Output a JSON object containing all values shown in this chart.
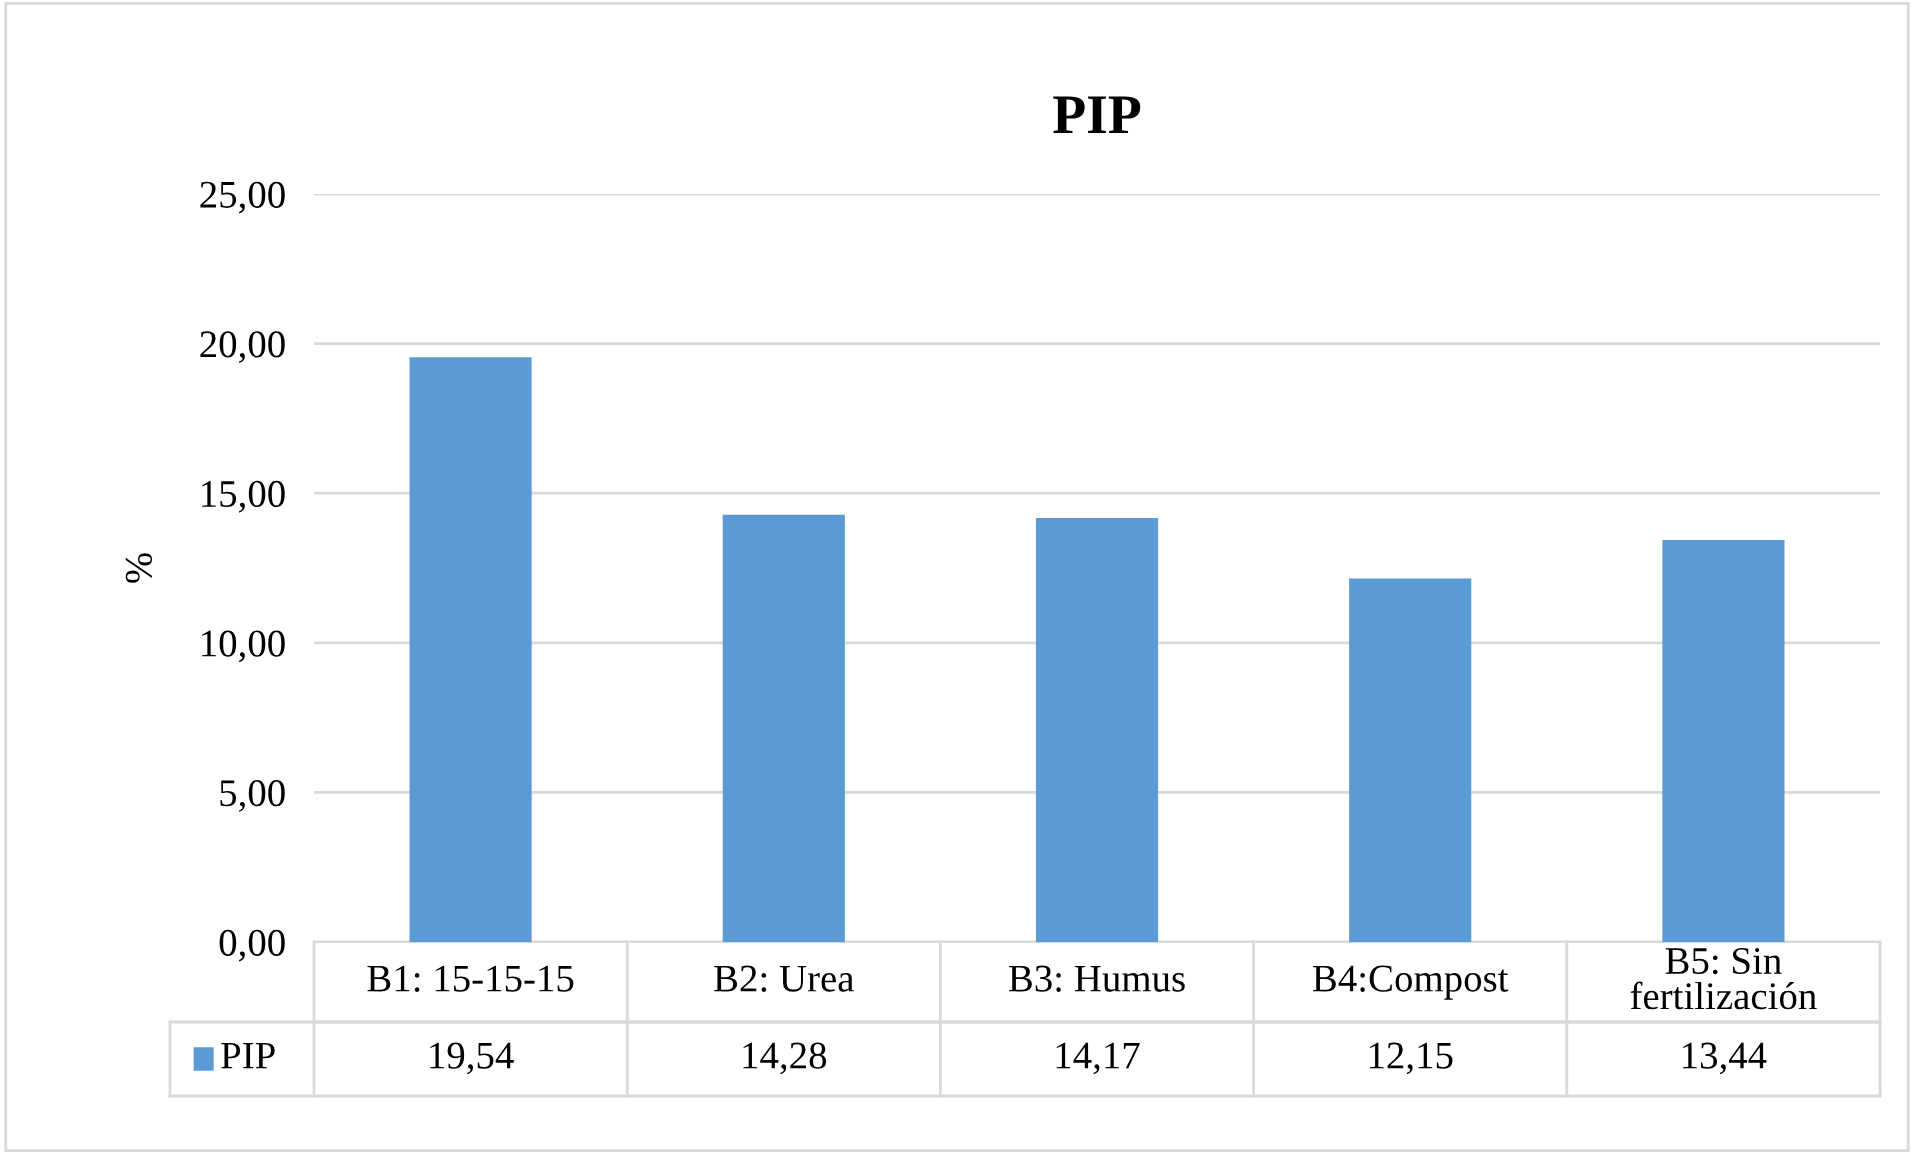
{
  "chart_data": {
    "type": "bar",
    "title": "PIP",
    "ylabel": "%",
    "categories": [
      "B1: 15-15-15",
      "B2: Urea",
      "B3: Humus",
      "B4:Compost",
      "B5: Sin\nfertilización"
    ],
    "series": [
      {
        "name": "PIP",
        "color": "#5b9bd5",
        "values": [
          19.54,
          14.28,
          14.17,
          12.15,
          13.44
        ],
        "value_labels": [
          "19,54",
          "14,28",
          "14,17",
          "12,15",
          "13,44"
        ]
      }
    ],
    "ylim": [
      0,
      25
    ],
    "yticks": [
      {
        "value": 0,
        "label": "0,00"
      },
      {
        "value": 5,
        "label": "5,00"
      },
      {
        "value": 10,
        "label": "10,00"
      },
      {
        "value": 15,
        "label": "15,00"
      },
      {
        "value": 20,
        "label": "20,00"
      },
      {
        "value": 25,
        "label": "25,00"
      }
    ],
    "grid": "y",
    "legend": "bottom"
  }
}
